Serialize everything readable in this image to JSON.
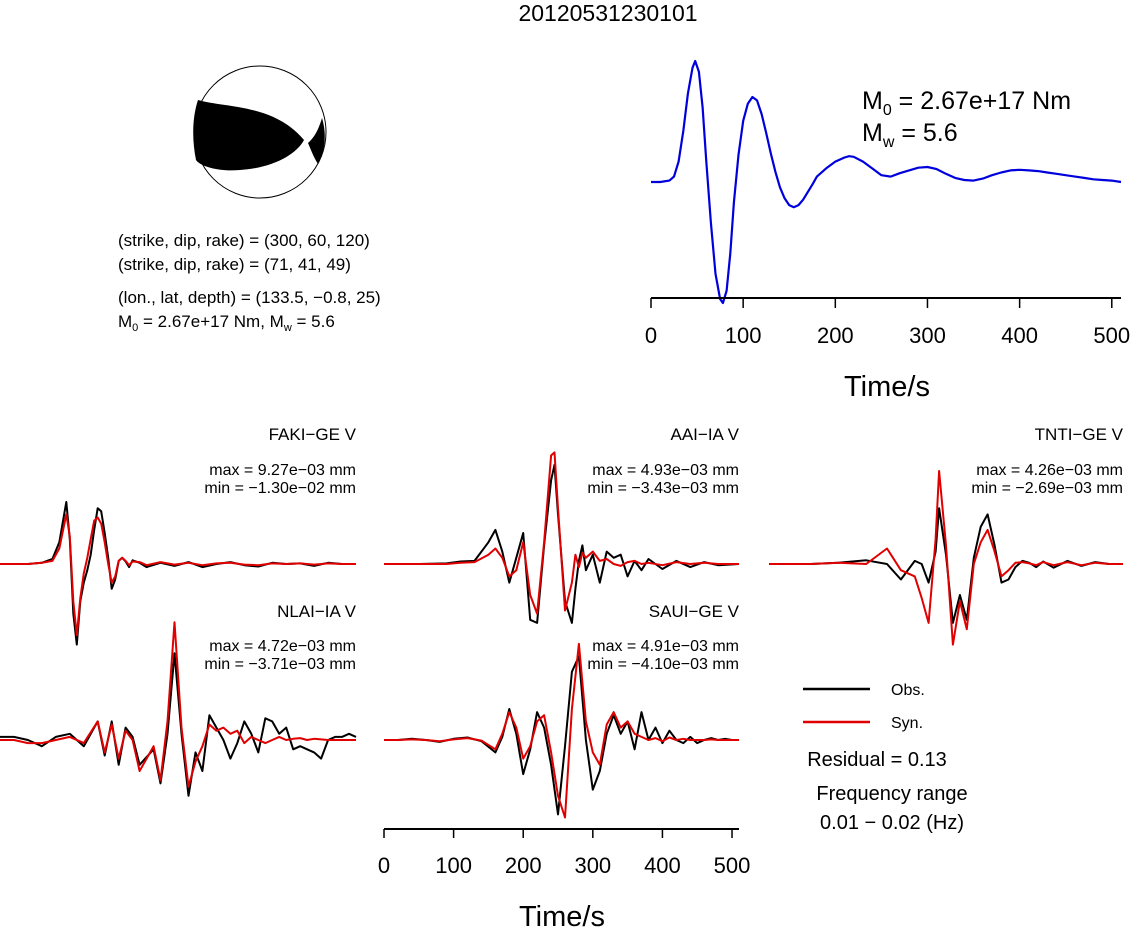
{
  "title": "20120531230101",
  "mechanism": {
    "plane1": "(strike, dip, rake) = (300, 60, 120)",
    "plane2": "(strike, dip, rake) = (71, 41, 49)",
    "location": "(lon., lat, depth) = (133.5, −0.8, 25)",
    "moment_prefix": "M",
    "moment_sub": "0",
    "moment_value": " = 2.67e+17 Nm, M",
    "mw_sub": "w",
    "mw_value": " = 5.6"
  },
  "stf": {
    "m0_prefix": "M",
    "m0_sub": "0",
    "m0_value": " = 2.67e+17 Nm",
    "mw_prefix": "M",
    "mw_sub": "w",
    "mw_value": " = 5.6",
    "xlabel": "Time/s"
  },
  "bottom_axis": {
    "xlabel": "Time/s"
  },
  "legend": {
    "obs_label": "Obs.",
    "syn_label": "Syn.",
    "obs_color": "#000000",
    "syn_color": "#e00000"
  },
  "residual": "Residual = 0.13",
  "frequency_label": "Frequency range",
  "frequency_value": "0.01 − 0.02 (Hz)",
  "chart_data": [
    {
      "type": "line",
      "name": "source-time-function",
      "color": "#0000dd",
      "xlim": [
        0,
        510
      ],
      "xticks": [
        0,
        100,
        200,
        300,
        400,
        500
      ],
      "xlabel": "Time/s",
      "x": [
        0,
        10,
        20,
        25,
        30,
        35,
        40,
        45,
        48,
        52,
        56,
        60,
        65,
        70,
        75,
        78,
        82,
        86,
        90,
        95,
        100,
        105,
        110,
        115,
        120,
        125,
        130,
        135,
        140,
        145,
        150,
        155,
        160,
        165,
        170,
        175,
        180,
        190,
        200,
        210,
        215,
        220,
        230,
        240,
        250,
        260,
        270,
        280,
        290,
        300,
        310,
        320,
        330,
        340,
        350,
        360,
        370,
        380,
        390,
        400,
        410,
        420,
        430,
        440,
        450,
        460,
        470,
        480,
        490,
        500,
        510
      ],
      "y": [
        0.0,
        0.0,
        0.02,
        0.08,
        0.3,
        0.75,
        1.3,
        1.68,
        1.78,
        1.62,
        1.1,
        0.3,
        -0.6,
        -1.35,
        -1.72,
        -1.78,
        -1.6,
        -1.05,
        -0.3,
        0.4,
        0.9,
        1.15,
        1.25,
        1.2,
        1.0,
        0.72,
        0.42,
        0.15,
        -0.08,
        -0.24,
        -0.34,
        -0.37,
        -0.34,
        -0.26,
        -0.15,
        -0.04,
        0.08,
        0.2,
        0.3,
        0.36,
        0.38,
        0.37,
        0.3,
        0.2,
        0.1,
        0.08,
        0.13,
        0.17,
        0.21,
        0.22,
        0.19,
        0.12,
        0.06,
        0.03,
        0.02,
        0.05,
        0.1,
        0.14,
        0.17,
        0.18,
        0.17,
        0.16,
        0.14,
        0.12,
        0.1,
        0.08,
        0.06,
        0.04,
        0.03,
        0.02,
        0.0
      ]
    },
    {
      "type": "line",
      "name": "FAKI-GE V",
      "station": "FAKI−GE V",
      "max": "max = 9.27e−03 mm",
      "min": "min = −1.30e−02 mm",
      "xlim": [
        0,
        510
      ],
      "obs": {
        "x": [
          0,
          40,
          60,
          75,
          85,
          95,
          100,
          105,
          110,
          115,
          120,
          125,
          130,
          135,
          140,
          145,
          150,
          155,
          160,
          165,
          170,
          175,
          180,
          185,
          190,
          200,
          210,
          230,
          250,
          270,
          290,
          310,
          330,
          350,
          370,
          390,
          410,
          430,
          450,
          470,
          490,
          510
        ],
        "y": [
          0.0,
          0.0,
          0.02,
          0.08,
          0.35,
          1.0,
          0.4,
          -0.8,
          -1.3,
          -0.6,
          -0.3,
          -0.1,
          0.15,
          0.55,
          0.9,
          0.85,
          0.5,
          0.1,
          -0.4,
          -0.25,
          0.05,
          0.1,
          0.04,
          -0.05,
          0.06,
          0.02,
          -0.05,
          0.02,
          -0.03,
          0.03,
          -0.05,
          0.0,
          0.03,
          -0.02,
          -0.04,
          0.02,
          0.0,
          0.01,
          -0.03,
          0.02,
          0.0,
          0.0
        ]
      },
      "syn": {
        "x": [
          0,
          40,
          60,
          75,
          85,
          95,
          100,
          105,
          110,
          115,
          120,
          125,
          130,
          135,
          140,
          145,
          150,
          155,
          160,
          165,
          170,
          175,
          180,
          185,
          190,
          200,
          210,
          230,
          250,
          270,
          290,
          310,
          330,
          350,
          370,
          390,
          410,
          430,
          450,
          470,
          490,
          510
        ],
        "y": [
          0.0,
          0.0,
          0.02,
          0.05,
          0.25,
          0.8,
          0.45,
          -0.6,
          -1.15,
          -0.55,
          -0.15,
          0.1,
          0.4,
          0.7,
          0.75,
          0.65,
          0.35,
          0.0,
          -0.3,
          -0.2,
          0.05,
          0.1,
          0.05,
          -0.02,
          0.04,
          0.03,
          -0.02,
          0.03,
          -0.01,
          0.02,
          -0.02,
          0.01,
          0.02,
          -0.01,
          -0.02,
          0.01,
          0.0,
          0.01,
          -0.01,
          0.01,
          0.0,
          0.0
        ]
      }
    },
    {
      "type": "line",
      "name": "AAI-IA V",
      "station": "AAI−IA V",
      "max": "max = 4.93e−03 mm",
      "min": "min = −3.43e−03 mm",
      "xlim": [
        0,
        510
      ],
      "obs": {
        "x": [
          0,
          50,
          90,
          110,
          130,
          150,
          160,
          170,
          180,
          190,
          200,
          210,
          220,
          230,
          240,
          245,
          250,
          260,
          270,
          275,
          280,
          285,
          290,
          300,
          310,
          320,
          330,
          340,
          350,
          360,
          370,
          380,
          400,
          420,
          440,
          460,
          480,
          510
        ],
        "y": [
          0.0,
          0.0,
          0.01,
          0.04,
          0.05,
          0.35,
          0.55,
          0.2,
          -0.3,
          0.1,
          0.5,
          -0.9,
          -0.95,
          0.3,
          1.35,
          1.6,
          0.8,
          -0.6,
          -0.95,
          -0.4,
          0.05,
          0.3,
          -0.1,
          0.15,
          -0.3,
          0.2,
          0.1,
          0.15,
          -0.2,
          0.05,
          -0.1,
          0.08,
          -0.08,
          0.05,
          -0.05,
          0.03,
          -0.02,
          0.0
        ]
      },
      "syn": {
        "x": [
          0,
          50,
          90,
          110,
          130,
          150,
          160,
          170,
          180,
          190,
          200,
          210,
          220,
          230,
          240,
          245,
          250,
          260,
          270,
          275,
          280,
          285,
          290,
          300,
          310,
          320,
          330,
          340,
          350,
          360,
          370,
          380,
          400,
          420,
          440,
          460,
          480,
          510
        ],
        "y": [
          0.0,
          0.0,
          0.0,
          0.02,
          0.03,
          0.15,
          0.25,
          0.1,
          -0.2,
          -0.1,
          0.35,
          -0.5,
          -0.8,
          0.35,
          1.75,
          1.8,
          0.9,
          -0.75,
          -0.3,
          0.15,
          -0.05,
          0.18,
          0.1,
          0.2,
          0.05,
          0.08,
          0.0,
          -0.03,
          0.03,
          0.05,
          0.0,
          0.02,
          -0.02,
          0.03,
          0.0,
          0.02,
          0.0,
          0.0
        ]
      }
    },
    {
      "type": "line",
      "name": "TNTI-GE V",
      "station": "TNTI−GE V",
      "max": "max = 4.26e−03 mm",
      "min": "min = −2.69e−03 mm",
      "xlim": [
        0,
        510
      ],
      "obs": {
        "x": [
          0,
          60,
          100,
          140,
          170,
          190,
          210,
          220,
          230,
          240,
          245,
          255,
          265,
          275,
          285,
          295,
          305,
          315,
          325,
          335,
          345,
          355,
          365,
          375,
          385,
          395,
          410,
          430,
          450,
          470,
          490,
          510
        ],
        "y": [
          0.0,
          0.0,
          0.02,
          0.06,
          0.0,
          -0.25,
          0.05,
          0.0,
          -0.3,
          0.2,
          0.9,
          0.15,
          -0.95,
          -0.5,
          -0.9,
          0.1,
          0.6,
          0.8,
          0.3,
          -0.3,
          -0.25,
          -0.05,
          0.05,
          0.02,
          -0.05,
          0.04,
          -0.06,
          0.05,
          -0.03,
          0.03,
          0.0,
          0.0
        ]
      },
      "syn": {
        "x": [
          0,
          60,
          100,
          140,
          170,
          190,
          210,
          220,
          230,
          240,
          245,
          255,
          265,
          275,
          285,
          295,
          305,
          315,
          325,
          335,
          345,
          355,
          365,
          375,
          385,
          395,
          410,
          430,
          450,
          470,
          490,
          510
        ],
        "y": [
          0.0,
          0.0,
          0.02,
          0.0,
          0.25,
          -0.1,
          -0.2,
          -0.55,
          -0.95,
          0.4,
          1.5,
          0.3,
          -1.3,
          -0.6,
          -1.05,
          0.0,
          0.35,
          0.55,
          0.2,
          -0.2,
          -0.1,
          0.02,
          0.03,
          0.01,
          -0.02,
          0.03,
          -0.02,
          0.03,
          -0.02,
          0.02,
          0.0,
          0.0
        ]
      }
    },
    {
      "type": "line",
      "name": "NLAI-IA V",
      "station": "NLAI−IA V",
      "max": "max = 4.72e−03 mm",
      "min": "min = −3.71e−03 mm",
      "xlim": [
        0,
        510
      ],
      "obs": {
        "x": [
          0,
          20,
          40,
          60,
          80,
          100,
          120,
          140,
          150,
          160,
          170,
          180,
          190,
          200,
          220,
          230,
          240,
          250,
          260,
          270,
          280,
          290,
          300,
          310,
          320,
          330,
          340,
          350,
          360,
          370,
          380,
          390,
          400,
          410,
          420,
          430,
          440,
          450,
          460,
          470,
          480,
          490,
          500,
          510
        ],
        "y": [
          0.05,
          0.05,
          0.0,
          -0.1,
          0.05,
          0.1,
          -0.1,
          0.3,
          -0.25,
          0.3,
          -0.4,
          0.2,
          0.05,
          -0.4,
          -0.15,
          -0.7,
          0.1,
          1.4,
          0.1,
          -0.9,
          -0.2,
          -0.5,
          0.4,
          0.2,
          0.0,
          -0.3,
          -0.05,
          0.3,
          0.1,
          -0.2,
          0.35,
          0.3,
          0.1,
          0.2,
          -0.15,
          -0.1,
          -0.15,
          -0.2,
          -0.3,
          0.0,
          0.05,
          0.05,
          0.1,
          0.05
        ]
      },
      "syn": {
        "x": [
          0,
          20,
          40,
          60,
          80,
          100,
          120,
          140,
          150,
          160,
          170,
          180,
          190,
          200,
          220,
          230,
          240,
          250,
          260,
          270,
          280,
          290,
          300,
          310,
          320,
          330,
          340,
          350,
          360,
          370,
          380,
          390,
          400,
          410,
          420,
          430,
          440,
          450,
          460,
          470,
          480,
          490,
          500,
          510
        ],
        "y": [
          0.0,
          0.0,
          -0.05,
          -0.05,
          0.0,
          0.05,
          -0.05,
          0.3,
          -0.2,
          0.25,
          -0.3,
          0.15,
          0.0,
          -0.5,
          -0.1,
          -0.65,
          0.3,
          1.9,
          0.2,
          -0.75,
          -0.35,
          -0.1,
          0.25,
          0.15,
          0.2,
          0.1,
          0.15,
          -0.05,
          0.05,
          0.0,
          -0.05,
          0.0,
          0.05,
          0.0,
          0.02,
          0.03,
          0.0,
          0.02,
          0.01,
          0.0,
          0.0,
          0.0,
          0.0,
          0.0
        ]
      }
    },
    {
      "type": "line",
      "name": "SAUI-GE V",
      "station": "SAUI−GE V",
      "max": "max = 4.91e−03 mm",
      "min": "min = −4.10e−03 mm",
      "xlim": [
        0,
        510
      ],
      "xticks": [
        0,
        100,
        200,
        300,
        400,
        500
      ],
      "xlabel": "Time/s",
      "obs": {
        "x": [
          0,
          20,
          40,
          60,
          80,
          100,
          120,
          140,
          160,
          170,
          180,
          190,
          200,
          210,
          220,
          230,
          240,
          250,
          260,
          270,
          280,
          290,
          300,
          310,
          320,
          330,
          340,
          350,
          360,
          370,
          380,
          390,
          400,
          410,
          420,
          430,
          440,
          450,
          460,
          470,
          480,
          490,
          500,
          510
        ],
        "y": [
          0.0,
          0.0,
          0.02,
          0.0,
          -0.03,
          0.02,
          0.04,
          -0.02,
          -0.2,
          0.05,
          0.5,
          0.1,
          -0.55,
          -0.15,
          0.45,
          0.2,
          -0.4,
          -1.2,
          -0.1,
          1.1,
          1.35,
          0.0,
          -0.8,
          -0.5,
          0.1,
          0.4,
          0.1,
          0.3,
          -0.15,
          0.45,
          0.0,
          0.2,
          -0.05,
          0.15,
          0.0,
          -0.05,
          0.05,
          -0.05,
          0.0,
          0.03,
          0.0,
          0.02,
          0.0,
          0.0
        ]
      },
      "syn": {
        "x": [
          0,
          20,
          40,
          60,
          80,
          100,
          120,
          140,
          160,
          170,
          180,
          190,
          200,
          210,
          220,
          230,
          240,
          250,
          260,
          270,
          280,
          290,
          300,
          310,
          320,
          330,
          340,
          350,
          360,
          370,
          380,
          390,
          400,
          410,
          420,
          430,
          440,
          450,
          460,
          470,
          480,
          490,
          500,
          510
        ],
        "y": [
          0.0,
          0.0,
          0.01,
          0.0,
          -0.02,
          0.01,
          0.03,
          -0.01,
          -0.15,
          0.1,
          0.45,
          0.2,
          -0.3,
          -0.1,
          0.3,
          0.4,
          -0.2,
          -0.9,
          -1.25,
          0.5,
          1.55,
          0.3,
          -0.2,
          -0.4,
          0.25,
          0.45,
          0.2,
          0.3,
          0.1,
          0.05,
          0.0,
          0.03,
          -0.02,
          0.04,
          0.0,
          0.02,
          0.0,
          0.0,
          0.0,
          0.01,
          0.0,
          0.0,
          0.0,
          0.0
        ]
      }
    }
  ]
}
